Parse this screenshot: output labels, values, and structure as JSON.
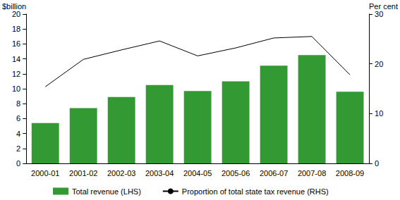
{
  "chart_data": {
    "type": "bar",
    "categories": [
      "2000-01",
      "2001-02",
      "2002-03",
      "2003-04",
      "2004-05",
      "2005-06",
      "2006-07",
      "2007-08",
      "2008-09"
    ],
    "series": [
      {
        "name": "Total revenue (LHS)",
        "type": "bar",
        "color": "#339933",
        "values": [
          5.4,
          7.4,
          8.9,
          10.5,
          9.7,
          11.0,
          13.1,
          14.5,
          9.6
        ]
      },
      {
        "name": "Proportion of total state tax revenue (RHS)",
        "type": "line",
        "color": "#000000",
        "axis": "y2",
        "values": [
          15.4,
          20.9,
          22.8,
          24.6,
          21.6,
          23.2,
          25.2,
          25.5,
          17.8
        ]
      }
    ],
    "y_label": "$billion",
    "y2_label": "Per cent",
    "ylim": [
      0,
      20
    ],
    "yticks": [
      0,
      2,
      4,
      6,
      8,
      10,
      12,
      14,
      16,
      18,
      20
    ],
    "y2lim": [
      0,
      30
    ],
    "y2ticks": [
      0,
      10,
      20,
      30
    ],
    "grid": false,
    "legend": "bottom"
  }
}
